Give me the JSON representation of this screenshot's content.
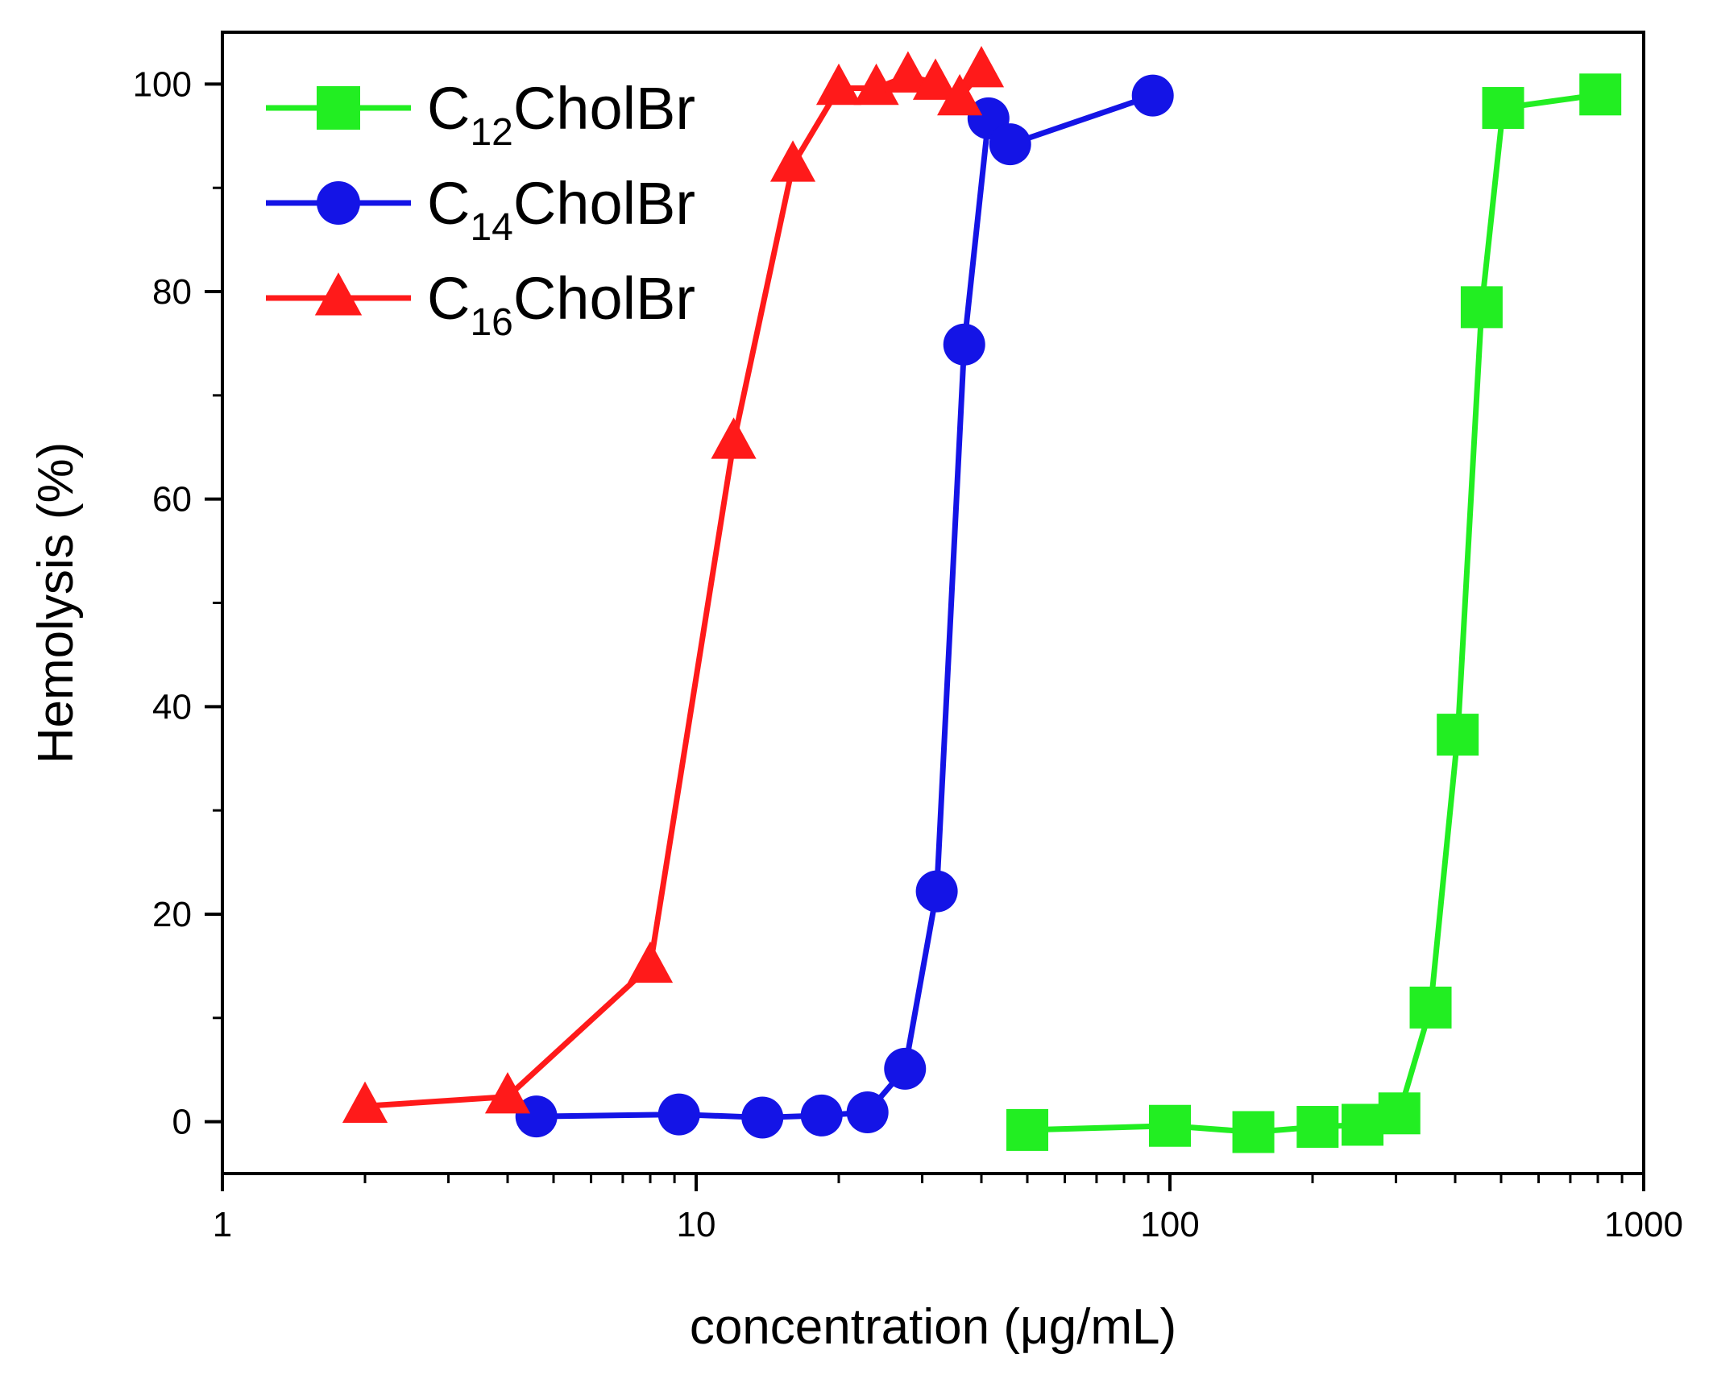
{
  "chart_data": {
    "type": "line",
    "title": "",
    "xlabel": "concentration (μg/mL)",
    "ylabel": "Hemolysis (%)",
    "xscale": "log",
    "xlim": [
      1,
      1000
    ],
    "ylim": [
      -5,
      105
    ],
    "xticks": [
      {
        "value": 1,
        "label": "1"
      },
      {
        "value": 10,
        "label": "10"
      },
      {
        "value": 100,
        "label": "100"
      },
      {
        "value": 1000,
        "label": "1000"
      }
    ],
    "yticks": [
      {
        "value": 0,
        "label": "0"
      },
      {
        "value": 20,
        "label": "20"
      },
      {
        "value": 40,
        "label": "40"
      },
      {
        "value": 60,
        "label": "60"
      },
      {
        "value": 80,
        "label": "80"
      },
      {
        "value": 100,
        "label": "100"
      }
    ],
    "grid": false,
    "legend_position": "top-left",
    "series": [
      {
        "name": "C12CholBr",
        "legend_prefix": "C",
        "legend_sub": "12",
        "legend_suffix": "CholBr",
        "color": "#22ee22",
        "marker": "square",
        "x": [
          50,
          100,
          150,
          205,
          255,
          305,
          355,
          405,
          455,
          505,
          810
        ],
        "y": [
          -0.8,
          -0.4,
          -1.0,
          -0.5,
          -0.3,
          0.8,
          11.0,
          37.3,
          78.5,
          97.7,
          99.0
        ]
      },
      {
        "name": "C14CholBr",
        "legend_prefix": "C",
        "legend_sub": "14",
        "legend_suffix": "CholBr",
        "color": "#1414e6",
        "marker": "circle",
        "x": [
          4.6,
          9.2,
          13.8,
          18.4,
          23.0,
          27.6,
          32.2,
          36.8,
          41.4,
          46.0,
          92.0
        ],
        "y": [
          0.5,
          0.7,
          0.4,
          0.6,
          0.9,
          5.1,
          22.2,
          74.9,
          96.7,
          94.2,
          98.9
        ]
      },
      {
        "name": "C16CholBr",
        "legend_prefix": "C",
        "legend_sub": "16",
        "legend_suffix": "CholBr",
        "color": "#ff1a1a",
        "marker": "triangle",
        "x": [
          2,
          4,
          8,
          12,
          16,
          20,
          24,
          28,
          32,
          36,
          40
        ],
        "y": [
          1.5,
          2.4,
          15.0,
          65.5,
          92.2,
          99.6,
          99.6,
          100.8,
          100.1,
          98.6,
          101.3
        ]
      }
    ]
  }
}
